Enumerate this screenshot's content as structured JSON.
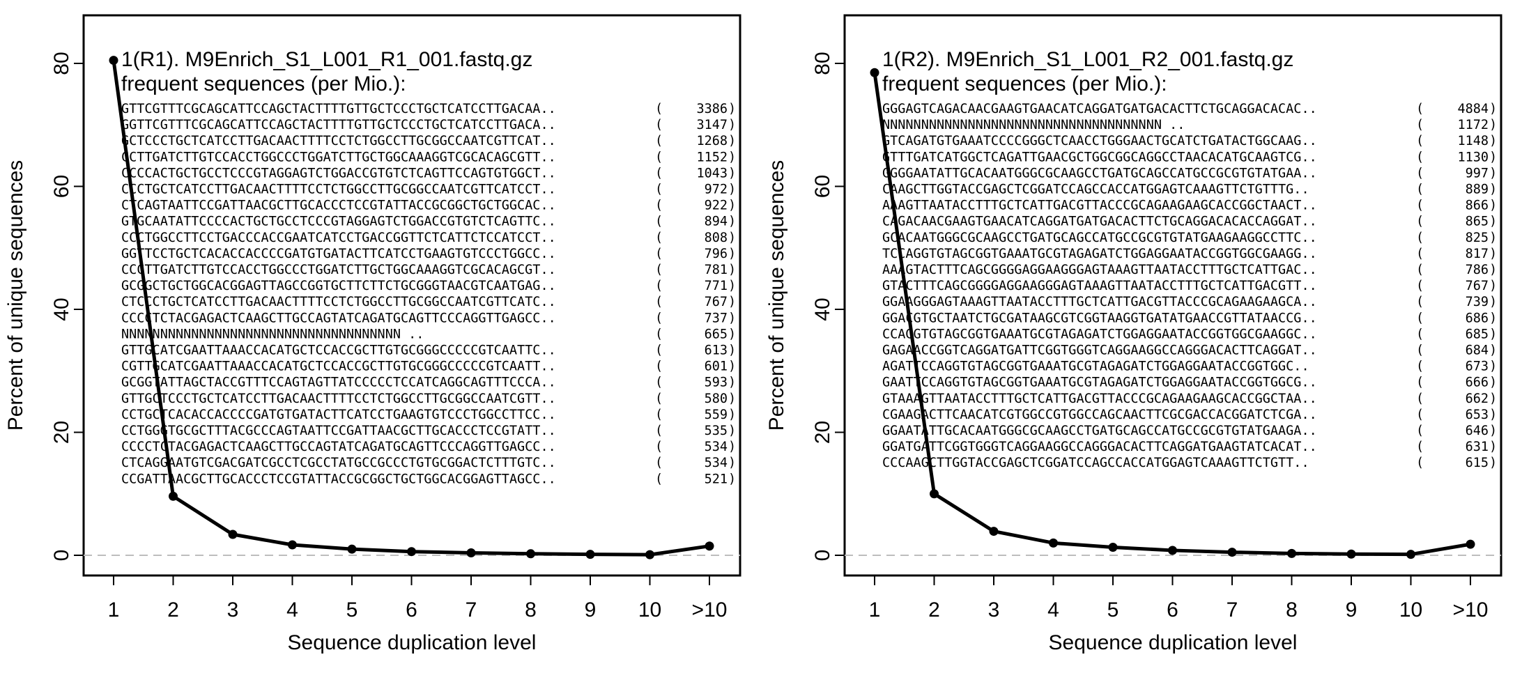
{
  "chart_data": [
    {
      "type": "line",
      "title": "1(R1). M9Enrich_S1_L001_R1_001.fastq.gz",
      "subtitle": "frequent sequences (per Mio.):",
      "xlabel": "Sequence duplication level",
      "ylabel": "Percent of unique sequences",
      "categories": [
        "1",
        "2",
        "3",
        "4",
        "5",
        "6",
        "7",
        "8",
        "9",
        "10",
        ">10"
      ],
      "values": [
        80.5,
        9.6,
        3.4,
        1.7,
        1.0,
        0.6,
        0.4,
        0.25,
        0.15,
        0.1,
        1.5
      ],
      "ylim": [
        0,
        80
      ],
      "yticks": [
        "0",
        "20",
        "40",
        "60",
        "80"
      ],
      "zero_line": true,
      "sequences": [
        {
          "seq": "GTTCGTTTCGCAGCATTCCAGCTACTTTTGTTGCTCCCTGCTCATCCTTGACAA..",
          "count": "3386"
        },
        {
          "seq": "GGTTCGTTTCGCAGCATTCCAGCTACTTTTGTTGCTCCCTGCTCATCCTTGACA..",
          "count": "3147"
        },
        {
          "seq": "GCTCCCTGCTCATCCTTGACAACTTTTCCTCTGGCCTTGCGGCCAATCGTTCAT..",
          "count": "1268"
        },
        {
          "seq": "CCTTGATCTTGTCCACCTGGCCCTGGATCTTGCTGGCAAAGGTCGCACAGCGTT..",
          "count": "1152"
        },
        {
          "seq": "CCCCACTGCTGCCTCCCGTAGGAGTCTGGACCGTGTCTCAGTTCCAGTGTGGCT..",
          "count": "1043"
        },
        {
          "seq": "CCCTGCTCATCCTTGACAACTTTTCCTCTGGCCTTGCGGCCAATCGTTCATCCT..",
          "count": "972"
        },
        {
          "seq": "CTCAGTAATTCCGATTAACGCTTGCACCCTCCGTATTACCGCGGCTGCTGGCAC..",
          "count": "922"
        },
        {
          "seq": "GTGCAATATTCCCCACTGCTGCCTCCCGTAGGAGTCTGGACCGTGTCTCAGTTC..",
          "count": "894"
        },
        {
          "seq": "CCCTGGCCTTCCTGACCCACCGAATCATCCTGACCGGTTCTCATTCTCCATCCT..",
          "count": "808"
        },
        {
          "seq": "GGTTCCTGCTCACACCACCCCGATGTGATACTTCATCCTGAAGTGTCCCTGGCC..",
          "count": "796"
        },
        {
          "seq": "CCCTTGATCTTGTCCACCTGGCCCTGGATCTTGCTGGCAAAGGTCGCACAGCGT..",
          "count": "781"
        },
        {
          "seq": "GCGGCTGCTGGCACGGAGTTAGCCGGTGCTTCTTCTGCGGGTAACGTCAATGAG..",
          "count": "771"
        },
        {
          "seq": "CTCCCTGCTCATCCTTGACAACTTTTCCTCTGGCCTTGCGGCCAATCGTTCATC..",
          "count": "767"
        },
        {
          "seq": "CCCCTCTACGAGACTCAAGCTTGCCAGTATCAGATGCAGTTCCCAGGTTGAGCC..",
          "count": "737"
        },
        {
          "seq": "NNNNNNNNNNNNNNNNNNNNNNNNNNNNNNNNNNNN                  ..",
          "count": "665"
        },
        {
          "seq": "GTTGCATCGAATTAAACCACATGCTCCACCGCTTGTGCGGGCCCCCGTCAATTC..",
          "count": "613"
        },
        {
          "seq": "CGTTGCATCGAATTAAACCACATGCTCCACCGCTTGTGCGGGCCCCCGTCAATT..",
          "count": "601"
        },
        {
          "seq": "GCGGTATTAGCTACCGTTTCCAGTAGTTATCCCCCTCCATCAGGCAGTTTCCCA..",
          "count": "593"
        },
        {
          "seq": "GTTGCTCCCTGCTCATCCTTGACAACTTTTCCTCTGGCCTTGCGGCCAATCGTT..",
          "count": "580"
        },
        {
          "seq": "CCTGCTCACACCACCCCGATGTGATACTTCATCCTGAAGTGTCCCTGGCCTTCC..",
          "count": "559"
        },
        {
          "seq": "CCTGGGTGCGCTTTACGCCCAGTAATTCCGATTAACGCTTGCACCCTCCGTATT..",
          "count": "535"
        },
        {
          "seq": "CCCCTCTACGAGACTCAAGCTTGCCAGTATCAGATGCAGTTCCCAGGTTGAGCC..",
          "count": "534"
        },
        {
          "seq": "CTCAGGAATGTCGACGATCGCCTCGCCTATGCCGCCCTGTGCGGACTCTTTGTC..",
          "count": "534"
        },
        {
          "seq": "CCGATTAACGCTTGCACCCTCCGTATTACCGCGGCTGCTGGCACGGAGTTAGCC..",
          "count": "521"
        }
      ]
    },
    {
      "type": "line",
      "title": "1(R2). M9Enrich_S1_L001_R2_001.fastq.gz",
      "subtitle": "frequent sequences (per Mio.):",
      "xlabel": "Sequence duplication level",
      "ylabel": "Percent of unique sequences",
      "categories": [
        "1",
        "2",
        "3",
        "4",
        "5",
        "6",
        "7",
        "8",
        "9",
        "10",
        ">10"
      ],
      "values": [
        78.5,
        10.0,
        3.9,
        2.0,
        1.3,
        0.8,
        0.5,
        0.3,
        0.2,
        0.15,
        1.8
      ],
      "ylim": [
        0,
        80
      ],
      "yticks": [
        "0",
        "20",
        "40",
        "60",
        "80"
      ],
      "zero_line": true,
      "sequences": [
        {
          "seq": "GGGAGTCAGACAACGAAGTGAACATCAGGATGATGACACTTCTGCAGGACACAC..",
          "count": "4884"
        },
        {
          "seq": "NNNNNNNNNNNNNNNNNNNNNNNNNNNNNNNNNNNN                  ..",
          "count": "1172"
        },
        {
          "seq": "GTCAGATGTGAAATCCCCGGGCTCAACCTGGGAACTGCATCTGATACTGGCAAG..",
          "count": "1148"
        },
        {
          "seq": "GTTTGATCATGGCTCAGATTGAACGCTGGCGGCAGGCCTAACACATGCAAGTCG..",
          "count": "1130"
        },
        {
          "seq": "GGGGAATATTGCACAATGGGCGCAAGCCTGATGCAGCCATGCCGCGTGTATGAA..",
          "count": "997"
        },
        {
          "seq": "CAAGCTTGGTACCGAGCTCGGATCCAGCCACCATGGAGTCAAAGTTCTGTTTG..",
          "count": "889"
        },
        {
          "seq": "AAAGTTAATACCTTTGCTCATTGACGTTACCCGCAGAAGAAGCACCGGCTAACT..",
          "count": "866"
        },
        {
          "seq": "CAGACAACGAAGTGAACATCAGGATGATGACACTTCTGCAGGACACACCAGGAT..",
          "count": "865"
        },
        {
          "seq": "GCACAATGGGCGCAAGCCTGATGCAGCCATGCCGCGTGTATGAAGAAGGCCTTC..",
          "count": "825"
        },
        {
          "seq": "TCCAGGTGTAGCGGTGAAATGCGTAGAGATCTGGAGGAATACCGGTGGCGAAGG..",
          "count": "817"
        },
        {
          "seq": "AAAGTACTTTCAGCGGGGAGGAAGGGAGTAAAGTTAATACCTTTGCTCATTGAC..",
          "count": "786"
        },
        {
          "seq": "GTACTTTCAGCGGGGAGGAAGGGAGTAAAGTTAATACCTTTGCTCATTGACGTT..",
          "count": "767"
        },
        {
          "seq": "GGAAGGGAGTAAAGTTAATACCTTTGCTCATTGACGTTACCCGCAGAAGAAGCA..",
          "count": "739"
        },
        {
          "seq": "GGACGTGCTAATCTGCGATAAGCGTCGGTAAGGTGATATGAACCGTTATAACCG..",
          "count": "686"
        },
        {
          "seq": "CCAGGTGTAGCGGTGAAATGCGTAGAGATCTGGAGGAATACCGGTGGCGAAGGC..",
          "count": "685"
        },
        {
          "seq": "GAGAACCGGTCAGGATGATTCGGTGGGTCAGGAAGGCCAGGGACACTTCAGGAT..",
          "count": "684"
        },
        {
          "seq": "AGATTCCAGGTGTAGCGGTGAAATGCGTAGAGATCTGGAGGAATACCGGTGGC..",
          "count": "673"
        },
        {
          "seq": "GAATTCCAGGTGTAGCGGTGAAATGCGTAGAGATCTGGAGGAATACCGGTGGCG..",
          "count": "666"
        },
        {
          "seq": "GTAAAGTTAATACCTTTGCTCATTGACGTTACCCGCAGAAGAAGCACCGGCTAA..",
          "count": "662"
        },
        {
          "seq": "CGAAGACTTCAACATCGTGGCCGTGGCCAGCAACTTCGCGACCACGGATCTCGA..",
          "count": "653"
        },
        {
          "seq": "GGAATATTGCACAATGGGCGCAAGCCTGATGCAGCCATGCCGCGTGTATGAAGA..",
          "count": "646"
        },
        {
          "seq": "GGATGATTCGGTGGGTCAGGAAGGCCAGGGACACTTCAGGATGAAGTATCACAT..",
          "count": "631"
        },
        {
          "seq": "CCCAAGCTTGGTACCGAGCTCGGATCCAGCCACCATGGAGTCAAAGTTCTGTT..",
          "count": "615"
        }
      ]
    }
  ]
}
